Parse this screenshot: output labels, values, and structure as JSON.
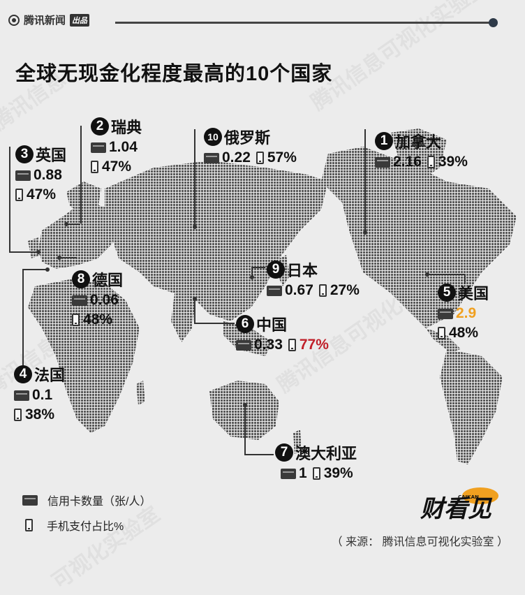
{
  "header": {
    "brand": "腾讯新闻",
    "brand_sub": "出品",
    "title": "全球无现金化程度最高的10个国家"
  },
  "colors": {
    "highlight_orange": "#f0a020",
    "highlight_red": "#c0202a",
    "text": "#111111"
  },
  "countries": [
    {
      "rank": "1",
      "name": "加拿大",
      "card": "2.16",
      "mobile": "39%"
    },
    {
      "rank": "2",
      "name": "瑞典",
      "card": "1.04",
      "mobile": "47%"
    },
    {
      "rank": "3",
      "name": "英国",
      "card": "0.88",
      "mobile": "47%"
    },
    {
      "rank": "4",
      "name": "法国",
      "card": "0.1",
      "mobile": "38%"
    },
    {
      "rank": "5",
      "name": "美国",
      "card": "2.9",
      "mobile": "48%"
    },
    {
      "rank": "6",
      "name": "中国",
      "card": "0.33",
      "mobile": "77%"
    },
    {
      "rank": "7",
      "name": "澳大利亚",
      "card": "1",
      "mobile": "39%"
    },
    {
      "rank": "8",
      "name": "德国",
      "card": "0.06",
      "mobile": "48%"
    },
    {
      "rank": "9",
      "name": "日本",
      "card": "0.67",
      "mobile": "27%"
    },
    {
      "rank": "10",
      "name": "俄罗斯",
      "card": "0.22",
      "mobile": "57%"
    }
  ],
  "legend": {
    "card_label": "信用卡数量（张/人）",
    "mobile_label": "手机支付占比%"
  },
  "source": "（ 来源：   腾讯信息可视化实验室 ）",
  "logo": {
    "text": "财看见",
    "sub": "CAIKAN"
  }
}
